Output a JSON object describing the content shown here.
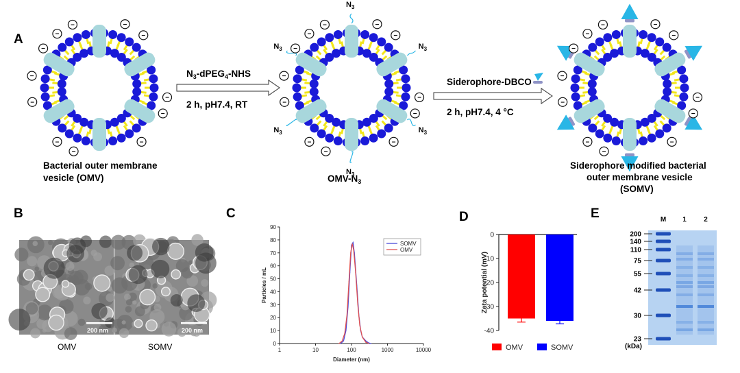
{
  "panel_labels": {
    "A": "A",
    "B": "B",
    "C": "C",
    "D": "D",
    "E": "E"
  },
  "panel_a": {
    "omv_caption_line1": "Bacterial outer membrane",
    "omv_caption_line2": "vesicle (OMV)",
    "omvn3_caption": "OMV-N",
    "omvn3_caption_sub": "3",
    "somv_caption_line1": "Siderophore modified bacterial",
    "somv_caption_line2": "outer membrane vesicle",
    "somv_caption_line3": "(SOMV)",
    "step1_reagent_prefix": "N",
    "step1_reagent_sub1": "3",
    "step1_reagent_mid": "-dPEG",
    "step1_reagent_sub2": "4",
    "step1_reagent_suffix": "-NHS",
    "step1_conditions": "2 h, pH7.4, RT",
    "step2_reagent": "Siderophore-DBCO",
    "step2_conditions": "2 h, pH7.4, 4 °C",
    "azide_label": "N",
    "azide_sub": "3",
    "charge_symbol": "−",
    "colors": {
      "headgroup": "#1a1ad8",
      "tail": "#f2e61a",
      "protein": "#a8d7dc",
      "siderophore": "#29b6e6",
      "linker": "#8f93c6"
    }
  },
  "panel_b": {
    "left_label": "OMV",
    "right_label": "SOMV",
    "scalebar_left": "200 nm",
    "scalebar_right": "200 nm"
  },
  "chart_data": [
    {
      "type": "line",
      "panel": "C",
      "xlabel": "Diameter (nm)",
      "ylabel": "Particles / mL",
      "xscale": "log",
      "xlim": [
        1,
        10000
      ],
      "ylim": [
        0,
        90
      ],
      "xticks": [
        "1",
        "10",
        "100",
        "1000",
        "10000"
      ],
      "yticks": [
        "0",
        "10",
        "20",
        "30",
        "40",
        "50",
        "60",
        "70",
        "80",
        "90"
      ],
      "legend_position": "top-right",
      "series": [
        {
          "name": "SOMV",
          "color": "#4a4ad8",
          "x": [
            50,
            60,
            70,
            80,
            90,
            100,
            110,
            120,
            140,
            160,
            180,
            200,
            250,
            300,
            350
          ],
          "y": [
            0,
            2,
            10,
            28,
            55,
            76,
            78,
            70,
            45,
            22,
            10,
            5,
            2,
            0.5,
            0
          ]
        },
        {
          "name": "OMV",
          "color": "#e05050",
          "x": [
            45,
            55,
            65,
            75,
            85,
            95,
            105,
            115,
            130,
            150,
            170,
            200,
            250,
            300
          ],
          "y": [
            0,
            2,
            8,
            22,
            48,
            70,
            77,
            72,
            55,
            30,
            14,
            5,
            1,
            0
          ]
        }
      ]
    },
    {
      "type": "bar",
      "panel": "D",
      "ylabel": "Zeta potential (mV)",
      "ylim": [
        -40,
        0
      ],
      "yticks": [
        "0",
        "-10",
        "-20",
        "-30",
        "-40"
      ],
      "categories": [
        "OMV",
        "SOMV"
      ],
      "values": [
        -35,
        -36
      ],
      "errors": [
        1.5,
        1.2
      ],
      "colors": [
        "#ff0000",
        "#0000ff"
      ],
      "legend_position": "bottom",
      "legend": [
        "OMV",
        "SOMV"
      ]
    }
  ],
  "panel_e": {
    "lane_labels": [
      "M",
      "1",
      "2"
    ],
    "markers": [
      "200",
      "140",
      "110",
      "75",
      "55",
      "42",
      "30",
      "23"
    ],
    "unit": "(kDa)"
  }
}
